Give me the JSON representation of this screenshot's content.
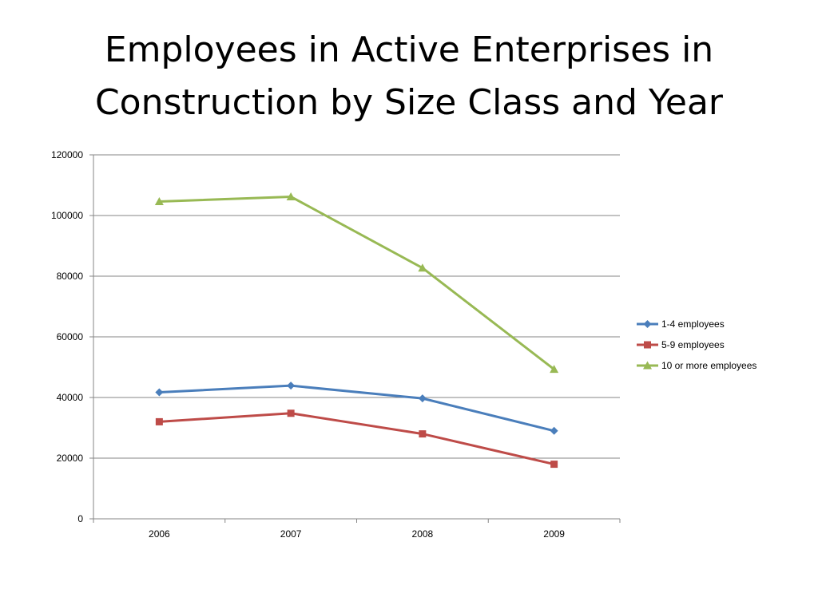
{
  "slide": {
    "title_line1": "Employees in Active Enterprises in",
    "title_line2": "Construction by Size Class and Year"
  },
  "chart_data": {
    "type": "line",
    "title": "Employees in Active Enterprises in Construction by Size Class and Year",
    "xlabel": "",
    "ylabel": "",
    "categories": [
      "2006",
      "2007",
      "2008",
      "2009"
    ],
    "ylim": [
      0,
      120000
    ],
    "yticks": [
      0,
      20000,
      40000,
      60000,
      80000,
      100000,
      120000
    ],
    "ytick_labels": [
      "0",
      "20000",
      "40000",
      "60000",
      "80000",
      "100000",
      "120000"
    ],
    "grid": true,
    "legend_position": "right",
    "series": [
      {
        "name": "1-4 employees",
        "values": [
          41700,
          43900,
          39700,
          29000
        ],
        "color": "#4a7ebb",
        "marker": "diamond"
      },
      {
        "name": "5-9 employees",
        "values": [
          32000,
          34800,
          28000,
          18000
        ],
        "color": "#be4b48",
        "marker": "square"
      },
      {
        "name": "10 or more employees",
        "values": [
          104600,
          106200,
          82700,
          49300
        ],
        "color": "#98b954",
        "marker": "triangle"
      }
    ]
  }
}
